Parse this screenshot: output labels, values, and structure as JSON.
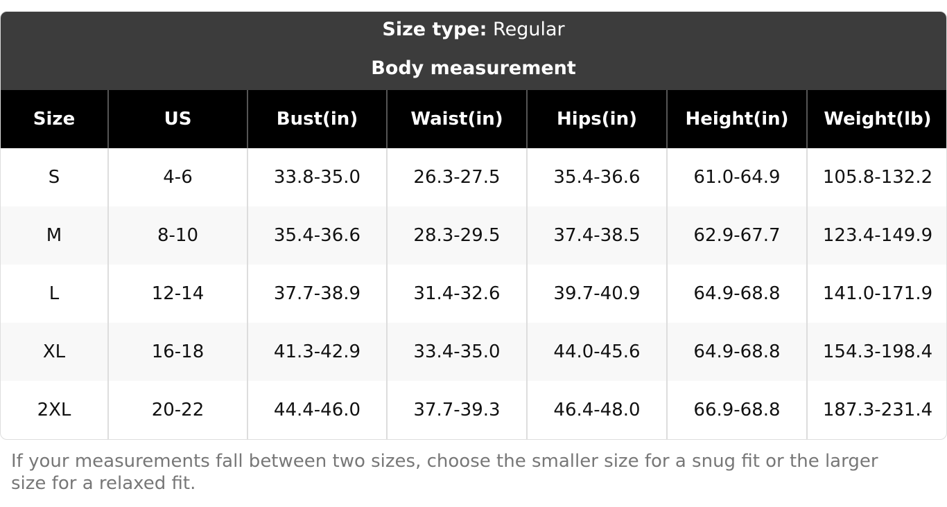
{
  "header": {
    "size_type_label": "Size type:",
    "size_type_value": "Regular",
    "subtitle": "Body measurement"
  },
  "table": {
    "columns": [
      "Size",
      "US",
      "Bust(in)",
      "Waist(in)",
      "Hips(in)",
      "Height(in)",
      "Weight(lb)"
    ],
    "rows": [
      [
        "S",
        "4-6",
        "33.8-35.0",
        "26.3-27.5",
        "35.4-36.6",
        "61.0-64.9",
        "105.8-132.2"
      ],
      [
        "M",
        "8-10",
        "35.4-36.6",
        "28.3-29.5",
        "37.4-38.5",
        "62.9-67.7",
        "123.4-149.9"
      ],
      [
        "L",
        "12-14",
        "37.7-38.9",
        "31.4-32.6",
        "39.7-40.9",
        "64.9-68.8",
        "141.0-171.9"
      ],
      [
        "XL",
        "16-18",
        "41.3-42.9",
        "33.4-35.0",
        "44.0-45.6",
        "64.9-68.8",
        "154.3-198.4"
      ],
      [
        "2XL",
        "20-22",
        "44.4-46.0",
        "37.7-39.3",
        "46.4-48.0",
        "66.9-68.8",
        "187.3-231.4"
      ]
    ]
  },
  "footnote": "If your measurements fall between two sizes, choose the smaller size for a snug fit or the larger size for a relaxed fit."
}
